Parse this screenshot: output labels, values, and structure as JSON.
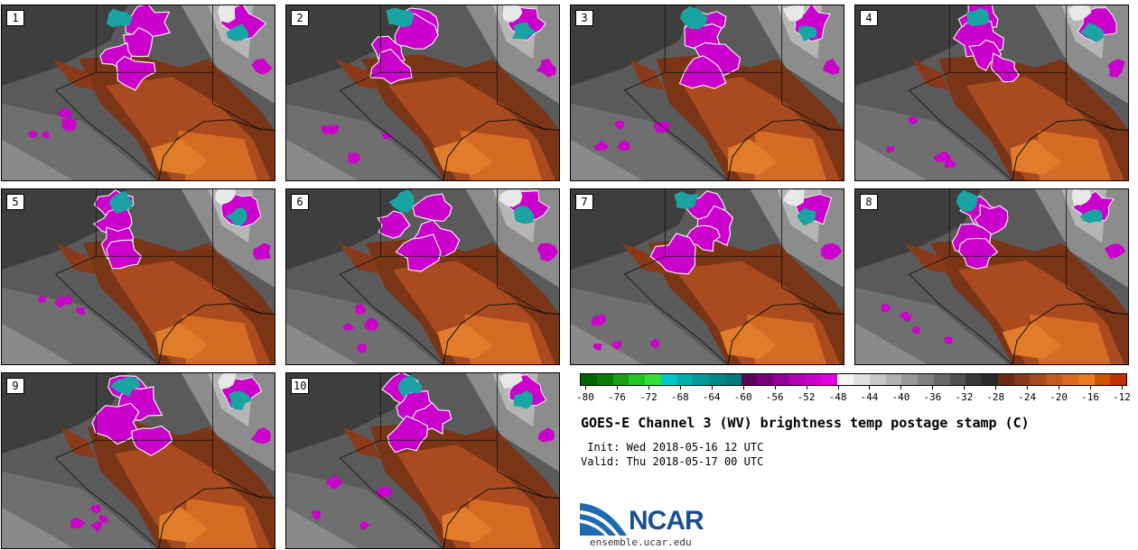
{
  "panels": [
    {
      "label": "1"
    },
    {
      "label": "2"
    },
    {
      "label": "3"
    },
    {
      "label": "4"
    },
    {
      "label": "5"
    },
    {
      "label": "6"
    },
    {
      "label": "7"
    },
    {
      "label": "8"
    },
    {
      "label": "9"
    },
    {
      "label": "10"
    }
  ],
  "colorbar": {
    "colors": [
      "#006400",
      "#0a7d0a",
      "#15a015",
      "#22c522",
      "#35e035",
      "#00c8c8",
      "#00aeae",
      "#009a9a",
      "#008888",
      "#007a7a",
      "#5a005a",
      "#780078",
      "#960096",
      "#b400b4",
      "#cc00cc",
      "#e000e0",
      "#f5f5f5",
      "#e0e0e0",
      "#c8c8c8",
      "#b0b0b0",
      "#989898",
      "#808080",
      "#686868",
      "#505050",
      "#383838",
      "#282828",
      "#6a2a14",
      "#8a3a1a",
      "#a84a20",
      "#c35a22",
      "#d86a22",
      "#ea7a22",
      "#cc5500",
      "#c03000"
    ],
    "tick_labels": [
      "-80",
      "-76",
      "-72",
      "-68",
      "-64",
      "-60",
      "-56",
      "-52",
      "-48",
      "-44",
      "-40",
      "-36",
      "-32",
      "-28",
      "-24",
      "-20",
      "-16",
      "-12"
    ]
  },
  "title": "GOES-E Channel 3 (WV) brightness temp postage stamp (C)",
  "init_line": " Init: Wed 2018-05-16 12 UTC",
  "valid_line": "Valid: Thu 2018-05-17 00 UTC",
  "logo": {
    "text": "NCAR",
    "url": "ensemble.ucar.edu"
  }
}
